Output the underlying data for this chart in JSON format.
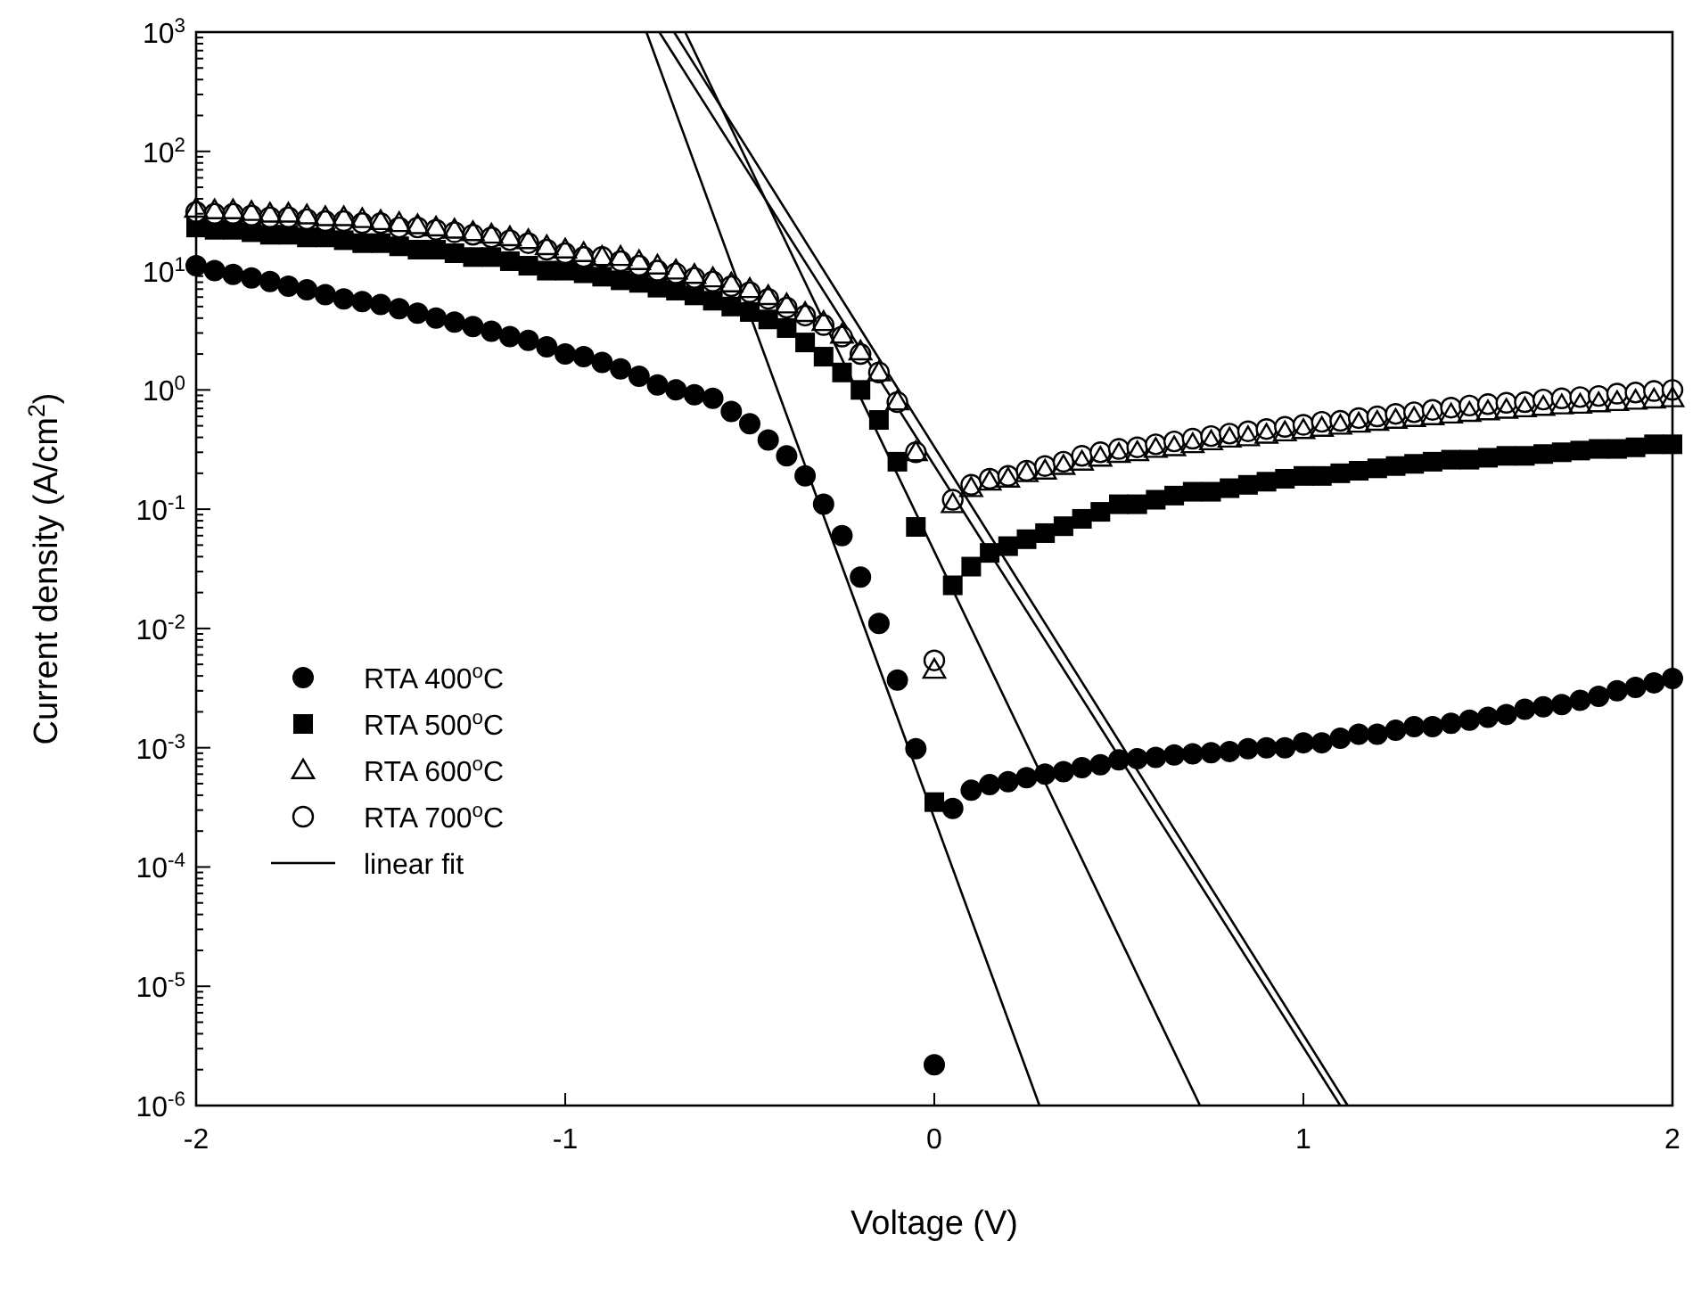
{
  "chart_data": {
    "type": "scatter",
    "xlabel": "Voltage (V)",
    "ylabel": "Current density (A/cm$^{2}$)",
    "log": "y",
    "legend": "left",
    "xlim": [
      -2,
      2
    ],
    "xticks": [
      {
        "value": -2,
        "label": "-2"
      },
      {
        "value": -1,
        "label": "-1"
      },
      0,
      1,
      2
    ],
    "ylim": [
      1e-06,
      1000
    ],
    "yticks": [
      {
        "value": 1e-06,
        "label": "10$^{-6}$"
      },
      {
        "value": 2e-06,
        "label": null
      },
      {
        "value": 3e-06,
        "label": null
      },
      {
        "value": 4e-06,
        "label": null
      },
      {
        "value": 5e-06,
        "label": null
      },
      {
        "value": 6e-06,
        "label": null
      },
      {
        "value": 7e-06,
        "label": null
      },
      {
        "value": 8e-06,
        "label": null
      },
      {
        "value": 9e-06,
        "label": null
      },
      {
        "value": 1e-05,
        "label": "10$^{-5}$"
      },
      {
        "value": 2e-05,
        "label": null
      },
      {
        "value": 3e-05,
        "label": null
      },
      {
        "value": 4e-05,
        "label": null
      },
      {
        "value": 5e-05,
        "label": null
      },
      {
        "value": 6e-05,
        "label": null
      },
      {
        "value": 7e-05,
        "label": null
      },
      {
        "value": 8e-05,
        "label": null
      },
      {
        "value": 9e-05,
        "label": null
      },
      {
        "value": 0.0001,
        "label": "10$^{-4}$"
      },
      {
        "value": 0.0002,
        "label": null
      },
      {
        "value": 0.0003,
        "label": null
      },
      {
        "value": 0.0004,
        "label": null
      },
      {
        "value": 0.0005,
        "label": null
      },
      {
        "value": 0.0006,
        "label": null
      },
      {
        "value": 0.0007,
        "label": null
      },
      {
        "value": 0.0008,
        "label": null
      },
      {
        "value": 0.0009,
        "label": null
      },
      {
        "value": 0.001,
        "label": "10$^{-3}$"
      },
      {
        "value": 0.002,
        "label": null
      },
      {
        "value": 0.003,
        "label": null
      },
      {
        "value": 0.004,
        "label": null
      },
      {
        "value": 0.005,
        "label": null
      },
      {
        "value": 0.006,
        "label": null
      },
      {
        "value": 0.007,
        "label": null
      },
      {
        "value": 0.008,
        "label": null
      },
      {
        "value": 0.009,
        "label": null
      },
      {
        "value": 0.01,
        "label": "10$^{-2}$"
      },
      {
        "value": 0.02,
        "label": null
      },
      {
        "value": 0.03,
        "label": null
      },
      {
        "value": 0.04,
        "label": null
      },
      {
        "value": 0.05,
        "label": null
      },
      {
        "value": 0.06,
        "label": null
      },
      {
        "value": 0.07,
        "label": null
      },
      {
        "value": 0.08,
        "label": null
      },
      {
        "value": 0.09,
        "label": null
      },
      {
        "value": 0.1,
        "label": "10$^{-1}$"
      },
      {
        "value": 0.2,
        "label": null
      },
      {
        "value": 0.3,
        "label": null
      },
      {
        "value": 0.4,
        "label": null
      },
      {
        "value": 0.5,
        "label": null
      },
      {
        "value": 0.6,
        "label": null
      },
      {
        "value": 0.7,
        "label": null
      },
      {
        "value": 0.8,
        "label": null
      },
      {
        "value": 0.9,
        "label": null
      },
      {
        "value": 1,
        "label": "10$^{0}$"
      },
      {
        "value": 2,
        "label": null
      },
      {
        "value": 3,
        "label": null
      },
      {
        "value": 4,
        "label": null
      },
      {
        "value": 5,
        "label": null
      },
      {
        "value": 6,
        "label": null
      },
      {
        "value": 7,
        "label": null
      },
      {
        "value": 8,
        "label": null
      },
      {
        "value": 9,
        "label": null
      },
      {
        "value": 10,
        "label": "10$^{1}$"
      },
      {
        "value": 20,
        "label": null
      },
      {
        "value": 30,
        "label": null
      },
      {
        "value": 40,
        "label": null
      },
      {
        "value": 50,
        "label": null
      },
      {
        "value": 60,
        "label": null
      },
      {
        "value": 70,
        "label": null
      },
      {
        "value": 80,
        "label": null
      },
      {
        "value": 90,
        "label": null
      },
      {
        "value": 100,
        "label": "10$^{2}$"
      },
      {
        "value": 200,
        "label": null
      },
      {
        "value": 300,
        "label": null
      },
      {
        "value": 400,
        "label": null
      },
      {
        "value": 500,
        "label": null
      },
      {
        "value": 600,
        "label": null
      },
      {
        "value": 700,
        "label": null
      },
      {
        "value": 800,
        "label": null
      },
      {
        "value": 900,
        "label": null
      },
      {
        "value": 1000,
        "label": "10$^{3}$"
      }
    ],
    "x": [
      -2,
      -1.95,
      -1.9,
      -1.85,
      -1.8,
      -1.75,
      -1.7,
      -1.65,
      -1.6,
      -1.55,
      -1.5,
      -1.45,
      -1.4,
      -1.35,
      -1.3,
      -1.25,
      -1.2,
      -1.15,
      -1.1,
      -1.05,
      -1,
      -0.95,
      -0.9,
      -0.85,
      -0.8,
      -0.75,
      -0.7,
      -0.65,
      -0.6,
      -0.55,
      -0.5,
      -0.45,
      -0.4,
      -0.35,
      -0.3,
      -0.25,
      -0.2,
      -0.15,
      -0.1,
      -0.05,
      0,
      0.05,
      0.1,
      0.15,
      0.2,
      0.25,
      0.3,
      0.35,
      0.4,
      0.45,
      0.5,
      0.55,
      0.6,
      0.65,
      0.7,
      0.75,
      0.8,
      0.85,
      0.9,
      0.95,
      1,
      1.05,
      1.1,
      1.15,
      1.2,
      1.25,
      1.3,
      1.35,
      1.4,
      1.45,
      1.5,
      1.55,
      1.6,
      1.65,
      1.7,
      1.75,
      1.8,
      1.85,
      1.9,
      1.95,
      2
    ],
    "series": [
      {
        "name": "RTA 400$^{o}$C",
        "color": "#000000",
        "marker": "circle",
        "values": [
          11,
          10,
          9.3,
          8.7,
          8.1,
          7.4,
          6.9,
          6.3,
          5.8,
          5.5,
          5.2,
          4.8,
          4.4,
          4.0,
          3.7,
          3.4,
          3.1,
          2.8,
          2.6,
          2.3,
          2.0,
          1.9,
          1.7,
          1.5,
          1.3,
          1.1,
          1.0,
          0.91,
          0.85,
          0.66,
          0.52,
          0.38,
          0.28,
          0.19,
          0.11,
          0.06,
          0.027,
          0.011,
          0.0037,
          0.00098,
          2.2e-06,
          0.00031,
          0.00044,
          0.00049,
          0.00052,
          0.00056,
          0.0006,
          0.00063,
          0.00068,
          0.00072,
          0.00079,
          0.00081,
          0.00083,
          0.00087,
          0.00089,
          0.00091,
          0.00093,
          0.00098,
          0.001,
          0.001,
          0.0011,
          0.0011,
          0.0012,
          0.0013,
          0.0013,
          0.0014,
          0.0015,
          0.0015,
          0.0016,
          0.0017,
          0.0018,
          0.0019,
          0.0021,
          0.0022,
          0.0023,
          0.0025,
          0.0027,
          0.003,
          0.0032,
          0.0035,
          0.0038
        ]
      },
      {
        "name": "RTA 500$^{o}$C",
        "color": "#000000",
        "marker": "square",
        "values": [
          23,
          22,
          22,
          21,
          20,
          20,
          19,
          19,
          18,
          17,
          17,
          16,
          15,
          15,
          14,
          13,
          13,
          12,
          11,
          10,
          10,
          9.5,
          8.9,
          8.3,
          7.9,
          7.2,
          6.8,
          6.2,
          5.6,
          5.0,
          4.5,
          3.9,
          3.3,
          2.5,
          1.9,
          1.4,
          1.0,
          0.56,
          0.25,
          0.071,
          0.00035,
          0.023,
          0.033,
          0.043,
          0.049,
          0.056,
          0.063,
          0.072,
          0.083,
          0.095,
          0.11,
          0.11,
          0.12,
          0.13,
          0.14,
          0.14,
          0.15,
          0.16,
          0.17,
          0.18,
          0.19,
          0.19,
          0.2,
          0.21,
          0.22,
          0.23,
          0.24,
          0.25,
          0.26,
          0.26,
          0.27,
          0.28,
          0.28,
          0.29,
          0.3,
          0.31,
          0.32,
          0.32,
          0.33,
          0.35,
          0.35
        ]
      },
      {
        "name": "RTA 600$^{o}$C",
        "color": "#000000",
        "marker": "triangle-open",
        "values": [
          33,
          32,
          32,
          31,
          30,
          30,
          29,
          28,
          28,
          27,
          26,
          25,
          24,
          23,
          22,
          21,
          20,
          19,
          18,
          16,
          15,
          14,
          13,
          13,
          12,
          11,
          10,
          9.2,
          8.6,
          7.8,
          7.0,
          6.1,
          5.2,
          4.4,
          3.7,
          2.9,
          2.1,
          1.4,
          0.8,
          0.3,
          0.0045,
          0.11,
          0.15,
          0.17,
          0.18,
          0.2,
          0.21,
          0.23,
          0.25,
          0.27,
          0.29,
          0.3,
          0.32,
          0.33,
          0.35,
          0.37,
          0.39,
          0.4,
          0.42,
          0.44,
          0.46,
          0.48,
          0.5,
          0.52,
          0.54,
          0.56,
          0.58,
          0.6,
          0.62,
          0.64,
          0.66,
          0.68,
          0.7,
          0.72,
          0.74,
          0.75,
          0.77,
          0.79,
          0.81,
          0.83,
          0.85
        ]
      },
      {
        "name": "RTA 700$^{o}$C",
        "color": "#000000",
        "marker": "circle-open",
        "values": [
          31,
          30,
          30,
          29,
          28,
          28,
          27,
          26,
          26,
          25,
          25,
          23,
          23,
          22,
          21,
          20,
          19,
          18,
          17,
          15,
          14,
          13,
          13,
          12,
          11,
          10,
          9.5,
          8.7,
          8.1,
          7.4,
          6.6,
          5.8,
          4.9,
          4.2,
          3.5,
          2.8,
          2.0,
          1.4,
          0.79,
          0.3,
          0.0054,
          0.12,
          0.16,
          0.18,
          0.19,
          0.21,
          0.23,
          0.25,
          0.28,
          0.3,
          0.32,
          0.33,
          0.35,
          0.37,
          0.39,
          0.41,
          0.43,
          0.45,
          0.47,
          0.49,
          0.51,
          0.54,
          0.55,
          0.58,
          0.6,
          0.63,
          0.65,
          0.68,
          0.71,
          0.74,
          0.76,
          0.78,
          0.79,
          0.83,
          0.85,
          0.87,
          0.89,
          0.93,
          0.95,
          0.98,
          1.0
        ]
      },
      {
        "name": "linear fit",
        "type": "line",
        "color": "#000000",
        "marker": "none",
        "x": [
          -0.78,
          0.285
        ],
        "values": [
          1000,
          1e-06
        ]
      },
      {
        "type": "line",
        "color": "#000000",
        "marker": "none",
        "x": [
          -0.675,
          0.72
        ],
        "values": [
          1000,
          1e-06
        ]
      },
      {
        "type": "line",
        "color": "#000000",
        "marker": "none",
        "x": [
          -0.705,
          1.12
        ],
        "values": [
          1000,
          1e-06
        ]
      },
      {
        "type": "line",
        "color": "#000000",
        "marker": "none",
        "x": [
          -0.745,
          1.1
        ],
        "values": [
          1000,
          1e-06
        ]
      }
    ]
  }
}
